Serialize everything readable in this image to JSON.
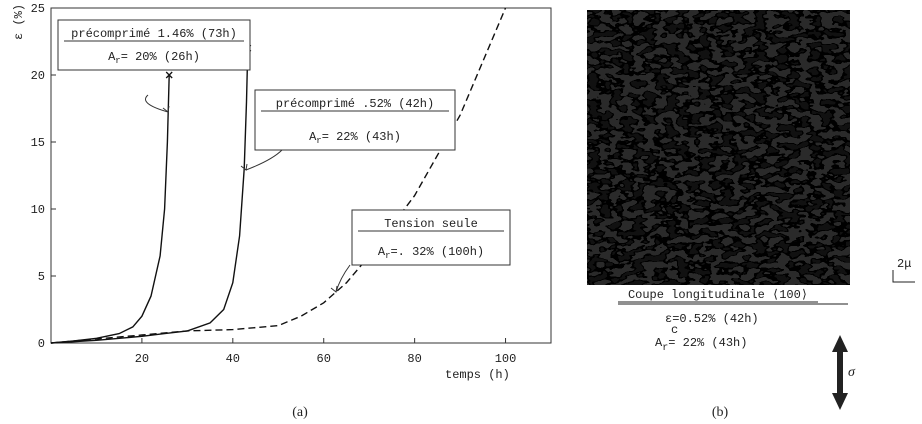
{
  "chart_data": {
    "type": "line",
    "x_label": "temps (h)",
    "y_label": "ε (%)",
    "xlim": [
      0,
      110
    ],
    "ylim": [
      0,
      25
    ],
    "xticks": [
      20,
      40,
      60,
      80,
      100
    ],
    "yticks": [
      0,
      5,
      10,
      15,
      20,
      25
    ],
    "grid": false,
    "series": [
      {
        "color": "#111111",
        "dash": false,
        "end_marker": true,
        "x": [
          0,
          5,
          10,
          15,
          18,
          20,
          22,
          24,
          25,
          25.6,
          26
        ],
        "values": [
          0,
          0.15,
          0.35,
          0.7,
          1.2,
          2,
          3.5,
          6.5,
          10,
          15,
          20
        ]
      },
      {
        "color": "#111111",
        "dash": false,
        "end_marker": true,
        "x": [
          0,
          10,
          20,
          25,
          30,
          35,
          38,
          40,
          41.5,
          42.5,
          43,
          43.3
        ],
        "values": [
          0,
          0.2,
          0.5,
          0.7,
          0.9,
          1.5,
          2.5,
          4.5,
          8,
          13,
          18,
          22
        ]
      },
      {
        "color": "#111111",
        "dash": true,
        "end_marker": false,
        "x": [
          0,
          10,
          20,
          30,
          40,
          50,
          55,
          60,
          65,
          70,
          80,
          90,
          100
        ],
        "values": [
          0,
          0.3,
          0.6,
          0.9,
          1.0,
          1.3,
          2,
          3,
          4.5,
          6.5,
          11,
          17,
          25
        ]
      }
    ],
    "annotations": [
      {
        "title": "précomprimé 1.46% (73h)",
        "symbol": "A",
        "sub": "r",
        "text": "= 20% (26h)"
      },
      {
        "title": "précomprimé .52% (42h)",
        "symbol": "A",
        "sub": "r",
        "text": "= 22% (43h)"
      },
      {
        "title": "Tension seule",
        "symbol": "A",
        "sub": "r",
        "text": "=. 32% (100h)"
      }
    ]
  },
  "micrograph": {
    "scale": "2μ",
    "caption": "Coupe longitudinale ⟨100⟩",
    "strain": {
      "symbol": "ε",
      "sub": "c",
      "text": "=0.52% (42h)"
    },
    "area": {
      "symbol": "A",
      "sub": "r",
      "text": "= 22% (43h)"
    },
    "stress": "σ"
  },
  "panel_labels": [
    "(a)",
    "(b)"
  ]
}
